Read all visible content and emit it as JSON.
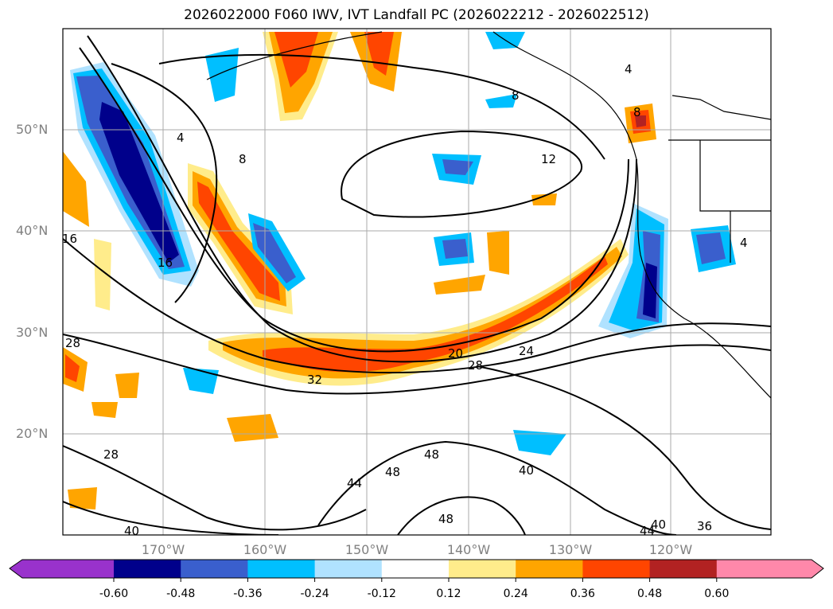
{
  "title": "2026022000 F060 IWV, IVT Landfall PC (2026022212 - 2026022512)",
  "lat_labels": [
    "50°N",
    "40°N",
    "30°N",
    "20°N"
  ],
  "lon_labels": [
    "170°W",
    "160°W",
    "150°W",
    "140°W",
    "130°W",
    "120°W"
  ],
  "colorbar": {
    "ticks": [
      "-0.60",
      "-0.48",
      "-0.36",
      "-0.24",
      "-0.12",
      "0.12",
      "0.24",
      "0.36",
      "0.48",
      "0.60"
    ],
    "colors": [
      "#9932cc",
      "#00008b",
      "#3a5fcd",
      "#00bfff",
      "#b0e2ff",
      "#ffffff",
      "#ffec8b",
      "#ffa500",
      "#ff4500",
      "#b22222",
      "#ff88aa"
    ]
  },
  "contour_labels": [
    "4",
    "8",
    "8",
    "12",
    "16",
    "16",
    "20",
    "24",
    "28",
    "28",
    "32",
    "28",
    "40",
    "44",
    "48",
    "48",
    "48",
    "40",
    "40",
    "36",
    "44",
    "4",
    "4",
    "8"
  ]
}
